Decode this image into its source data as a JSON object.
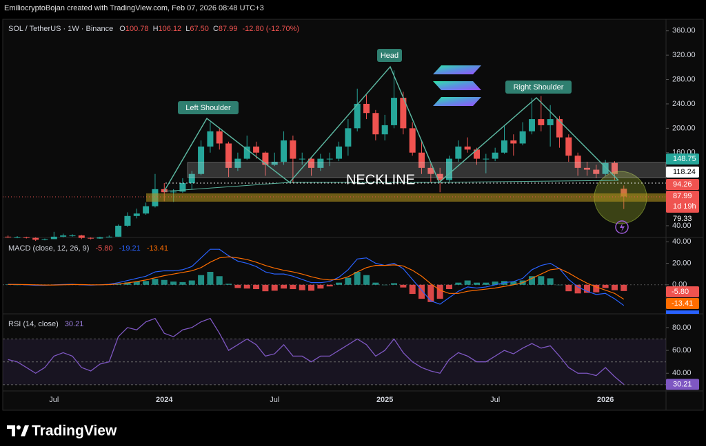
{
  "header": "EmiliocryptoBojan created with TradingView.com, Feb 07, 2026 08:48 UTC+3",
  "footer": "TradingView",
  "chart_data": [
    {
      "type": "candlestick",
      "title": "SOL / TetherUS · 1W · Binance",
      "ohlc_legend": [
        "O",
        "H",
        "L",
        "C"
      ],
      "ohlc_values": [
        100.78,
        106.12,
        {
          "value": 67.5,
          "label": "67.50"
        },
        87.99
      ],
      "change": "-12.80 (-12.70%)",
      "categories": [
        null,
        null,
        null,
        null,
        null,
        "Jul",
        null,
        null,
        null,
        null,
        null,
        null,
        null,
        null,
        null,
        null,
        null,
        "2024",
        null,
        null,
        null,
        null,
        null,
        null,
        null,
        null,
        null,
        null,
        null,
        "Jul",
        null,
        null,
        null,
        null,
        null,
        null,
        null,
        null,
        null,
        null,
        null,
        "2025",
        null,
        null,
        null,
        null,
        null,
        null,
        null,
        null,
        null,
        null,
        null,
        "Jul",
        null,
        null,
        null,
        null,
        null,
        null,
        null,
        null,
        null,
        null,
        null,
        "2026",
        null,
        null
      ],
      "open": [
        22,
        21,
        21,
        20,
        17,
        18,
        22,
        24,
        24,
        20,
        19,
        21,
        22,
        40,
        56,
        60,
        72,
        100,
        95,
        96,
        110,
        125,
        170,
        195,
        175,
        135,
        150,
        170,
        160,
        140,
        145,
        180,
        150,
        150,
        135,
        150,
        150,
        170,
        200,
        240,
        225,
        190,
        205,
        250,
        200,
        160,
        135,
        125,
        115,
        150,
        170,
        165,
        150,
        150,
        160,
        180,
        175,
        195,
        215,
        205,
        215,
        185,
        155,
        135,
        132,
        125,
        143,
        100.78
      ],
      "high": [
        24,
        23,
        22,
        21,
        19,
        30,
        27,
        26,
        25,
        21,
        22,
        24,
        42,
        62,
        68,
        78,
        125,
        110,
        100,
        118,
        130,
        180,
        210,
        200,
        178,
        160,
        188,
        178,
        162,
        160,
        195,
        188,
        160,
        152,
        158,
        160,
        178,
        215,
        265,
        255,
        230,
        222,
        295,
        260,
        210,
        180,
        145,
        135,
        155,
        180,
        185,
        168,
        158,
        168,
        205,
        190,
        210,
        250,
        253,
        238,
        220,
        190,
        160,
        145,
        140,
        148,
        146,
        106.12
      ],
      "low": [
        20,
        19.5,
        19,
        15,
        16,
        18,
        21,
        22,
        18,
        17.5,
        18.5,
        21,
        22,
        38,
        52,
        58,
        70,
        80,
        79,
        94,
        100,
        123,
        160,
        165,
        120,
        130,
        148,
        150,
        122,
        138,
        140,
        110,
        140,
        122,
        130,
        138,
        146,
        155,
        195,
        215,
        180,
        180,
        200,
        190,
        155,
        125,
        112,
        95,
        112,
        145,
        160,
        140,
        126,
        146,
        158,
        155,
        172,
        190,
        195,
        170,
        168,
        145,
        122,
        122,
        118,
        122,
        115,
        67.5
      ],
      "close": [
        21,
        21,
        20,
        17,
        18,
        22,
        24,
        24,
        20,
        19,
        21,
        22,
        40,
        56,
        60,
        72,
        100,
        95,
        96,
        110,
        125,
        170,
        195,
        175,
        135,
        150,
        170,
        160,
        140,
        145,
        180,
        150,
        150,
        135,
        150,
        150,
        170,
        200,
        240,
        225,
        190,
        205,
        250,
        200,
        160,
        135,
        125,
        115,
        150,
        170,
        165,
        150,
        150,
        160,
        180,
        175,
        195,
        215,
        205,
        215,
        185,
        155,
        135,
        132,
        125,
        143,
        125,
        87.99
      ],
      "up_color": "#26a69a",
      "down_color": "#ef5350",
      "ylim": [
        23,
        371
      ],
      "yticks": [
        {
          "value": 40,
          "label": "40.00"
        },
        {
          "value": 160,
          "label": "160.00"
        },
        {
          "value": 200,
          "label": "200.00"
        },
        {
          "value": 240,
          "label": "240.00"
        },
        {
          "value": 280,
          "label": "280.00"
        },
        {
          "value": 320,
          "label": "320.00"
        },
        {
          "value": 360,
          "label": "360.00"
        }
      ],
      "grid": false,
      "annotations": [
        "Left Shoulder",
        "Head",
        "Right Shoulder",
        "NECKLINE"
      ],
      "price_badges": [
        {
          "value": 148.75,
          "color": "#26a69a"
        },
        {
          "value": 118.24,
          "color": "#ffffff"
        },
        {
          "value": 94.26,
          "color": "#ef5350"
        },
        {
          "value": 87.99,
          "color": "#ef5350"
        },
        {
          "value": 79.33
        }
      ],
      "countdown": "1d 19h"
    },
    {
      "type": "macd",
      "title": "MACD (close, 12, 26, 9)",
      "legend": [
        {
          "value": -5.8,
          "label": "-5.80",
          "color": "#ef5350"
        },
        {
          "value": -19.21,
          "label": "-19.21",
          "color": "#2962ff"
        },
        {
          "value": -13.41,
          "label": "-13.41",
          "color": "#ff6d00"
        }
      ],
      "histogram": {
        "values": [
          0.2,
          0,
          -0.2,
          -0.5,
          -0.3,
          0.2,
          0.3,
          0.3,
          -0.2,
          -0.3,
          0,
          0.3,
          1.2,
          2.2,
          3,
          3.5,
          5.5,
          4.5,
          3,
          2.5,
          4,
          9,
          12,
          8,
          1,
          -3,
          -3.5,
          -4,
          -6,
          -5.5,
          -3.5,
          -4,
          -5,
          -5.5,
          -3.5,
          -1.5,
          2,
          6.5,
          12,
          9,
          2,
          0,
          1.5,
          -2.5,
          -8.5,
          -13,
          -16,
          -13,
          -4,
          2,
          4,
          2,
          2,
          3,
          3.5,
          3,
          4,
          8,
          8,
          6,
          0,
          -6,
          -8,
          -7.5,
          -7,
          -3,
          -5,
          -5.8
        ],
        "up_color": "#26a69a",
        "down_color": "#ff5252"
      },
      "series": [
        {
          "color": "#2962ff",
          "values": [
            0.5,
            0.3,
            0,
            -0.5,
            -0.5,
            0,
            0.3,
            0.5,
            0,
            -0.3,
            0,
            0.5,
            2,
            4,
            6,
            8,
            12,
            13,
            13,
            14,
            17,
            25,
            33,
            33,
            27,
            22,
            20,
            17,
            12,
            10,
            10,
            8,
            5,
            2,
            2,
            3,
            7,
            14,
            24,
            25,
            20,
            18,
            20,
            15,
            5,
            -5,
            -15,
            -18,
            -12,
            -6,
            -2,
            -3,
            -2,
            0,
            2,
            3,
            6,
            14,
            18,
            20,
            15,
            5,
            -2,
            -6,
            -9,
            -8,
            -13,
            -19.21
          ]
        },
        {
          "color": "#ff6d00",
          "values": [
            0.3,
            0.3,
            0.2,
            0,
            -0.2,
            -0.2,
            0,
            0.2,
            0.2,
            0,
            0,
            0.2,
            0.8,
            1.8,
            3,
            4.5,
            6.5,
            8.5,
            10,
            11.5,
            13,
            16,
            21,
            25,
            26,
            25,
            23.5,
            21,
            18,
            15.5,
            13.5,
            12,
            10,
            7.5,
            5.5,
            4.5,
            5,
            7.5,
            12,
            16,
            18,
            18,
            18.5,
            17.5,
            13.5,
            8,
            1,
            -5,
            -8,
            -8,
            -6,
            -5,
            -4,
            -3,
            -1.5,
            0,
            2,
            6,
            10,
            14,
            15,
            11,
            6,
            1.5,
            -2,
            -5,
            -8,
            -13.41
          ]
        }
      ],
      "ylim": [
        -27,
        44
      ],
      "yticks": [
        {
          "value": 0,
          "label": "0.00"
        },
        {
          "value": 20,
          "label": "20.00"
        },
        {
          "value": 40,
          "label": "40.00"
        }
      ],
      "badges": [
        {
          "value": -5.8,
          "label": "-5.80",
          "color": "#ef5350"
        },
        {
          "value": -13.41,
          "label": "-13.41",
          "color": "#ff6d00"
        }
      ]
    },
    {
      "type": "rsi",
      "title": "RSI (14, close)",
      "legend_value": 30.21,
      "color": "#7e57c2",
      "values": [
        52,
        50,
        45,
        40,
        45,
        55,
        58,
        55,
        45,
        42,
        48,
        50,
        72,
        80,
        78,
        85,
        88,
        75,
        72,
        78,
        80,
        85,
        88,
        75,
        60,
        65,
        70,
        65,
        55,
        57,
        65,
        55,
        55,
        50,
        55,
        55,
        60,
        65,
        70,
        65,
        55,
        60,
        70,
        58,
        50,
        45,
        42,
        40,
        52,
        58,
        55,
        50,
        50,
        55,
        60,
        57,
        62,
        66,
        62,
        64,
        55,
        45,
        40,
        40,
        38,
        45,
        37,
        30.21
      ],
      "levels": [
        70,
        50,
        30
      ],
      "ylim": [
        24.5,
        92
      ],
      "yticks": [
        {
          "value": 40,
          "label": "40.00"
        },
        {
          "value": 60,
          "label": "60.00"
        },
        {
          "value": 80,
          "label": "80.00"
        }
      ]
    }
  ]
}
